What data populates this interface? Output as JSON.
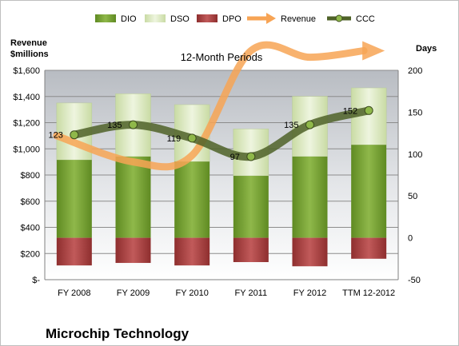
{
  "chart_data": {
    "type": "bar",
    "title": "12-Month Periods",
    "company": "Microchip Technology",
    "left_axis_label": [
      "Revenue",
      "$millions"
    ],
    "right_axis_label": "Days",
    "categories": [
      "FY 2008",
      "FY 2009",
      "FY 2010",
      "FY 2011",
      "FY 2012",
      "TTM 12-2012"
    ],
    "left_ylim": [
      0,
      1600
    ],
    "left_ticks": [
      {
        "value": 0,
        "label": "$-"
      },
      {
        "value": 200,
        "label": "$200"
      },
      {
        "value": 400,
        "label": "$400"
      },
      {
        "value": 600,
        "label": "$600"
      },
      {
        "value": 800,
        "label": "$800"
      },
      {
        "value": 1000,
        "label": "$1,000"
      },
      {
        "value": 1200,
        "label": "$1,200"
      },
      {
        "value": 1400,
        "label": "$1,400"
      },
      {
        "value": 1600,
        "label": "$1,600"
      }
    ],
    "right_ylim": [
      -50,
      200
    ],
    "right_ticks": [
      {
        "value": -50,
        "label": "-50"
      },
      {
        "value": 0,
        "label": "0"
      },
      {
        "value": 50,
        "label": "50"
      },
      {
        "value": 100,
        "label": "100"
      },
      {
        "value": 150,
        "label": "150"
      },
      {
        "value": 200,
        "label": "200"
      }
    ],
    "series": [
      {
        "name": "DIO",
        "kind": "bar",
        "axis": "right",
        "color": "#77a033",
        "values": [
          93,
          97,
          91,
          74,
          97,
          111
        ]
      },
      {
        "name": "DSO",
        "kind": "bar",
        "axis": "right",
        "color": "#d7e4bd",
        "values": [
          68,
          75,
          68,
          56,
          72,
          68
        ]
      },
      {
        "name": "DPO",
        "kind": "bar",
        "axis": "right",
        "color": "#a83c3c",
        "values": [
          -33,
          -30,
          -33,
          -29,
          -34,
          -25
        ]
      },
      {
        "name": "Revenue",
        "kind": "arrow-line",
        "axis": "left",
        "color": "#f7a455",
        "values": [
          1100,
          900,
          950,
          1750,
          1700,
          1750
        ]
      },
      {
        "name": "CCC",
        "kind": "line",
        "axis": "right",
        "color": "#4f6228",
        "values": [
          123,
          135,
          119,
          97,
          135,
          152
        ],
        "labels": [
          "123",
          "135",
          "119",
          "97",
          "135",
          "152"
        ]
      }
    ],
    "grid": true,
    "legend_position": "top"
  }
}
